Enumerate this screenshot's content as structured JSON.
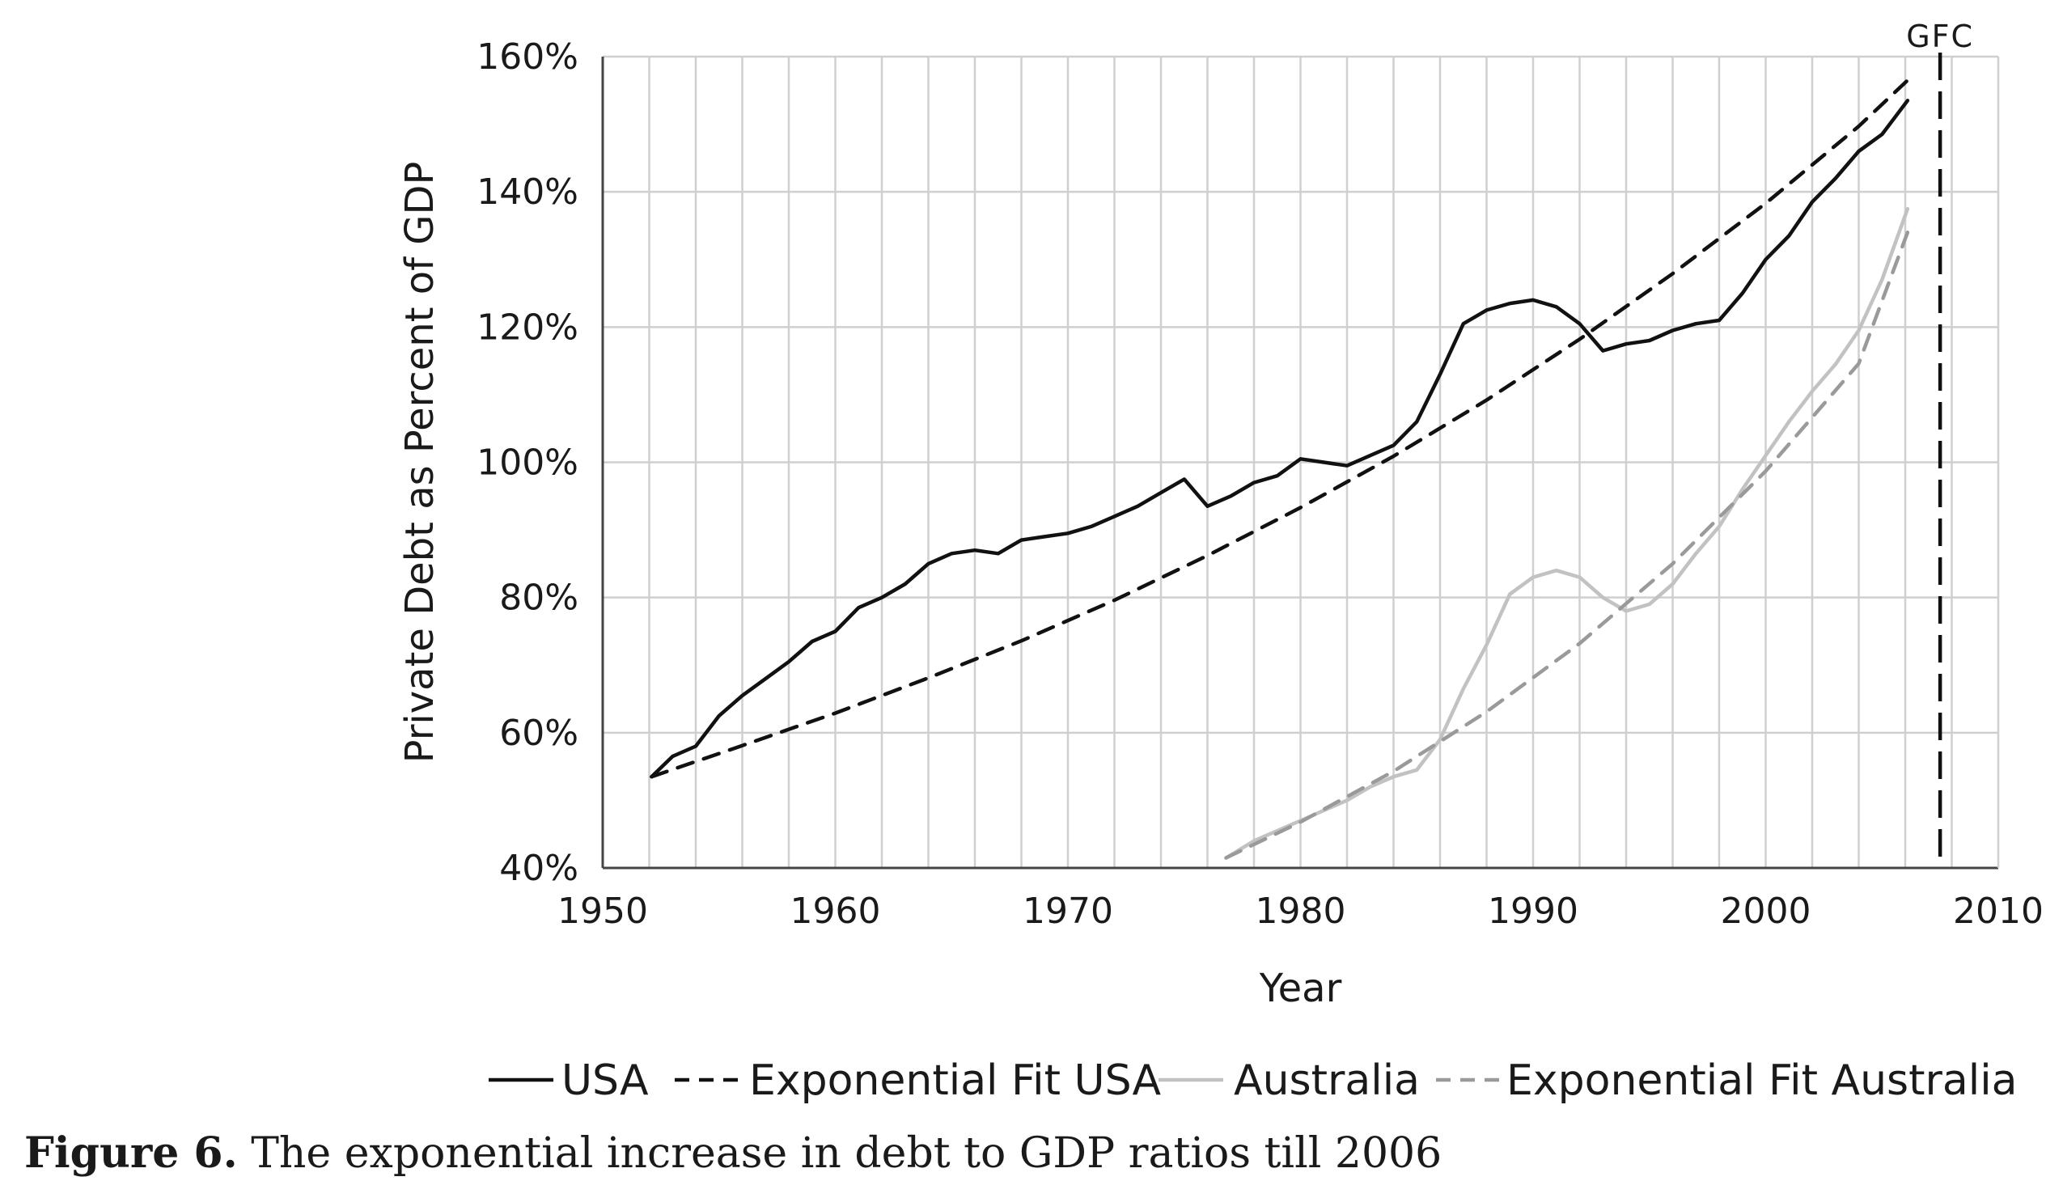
{
  "chart_data": {
    "type": "line",
    "title": "",
    "xlabel": "Year",
    "ylabel": "Private Debt as Percent of GDP",
    "xlim": [
      1950,
      2010
    ],
    "ylim": [
      40,
      160
    ],
    "x_ticks": [
      1950,
      1960,
      1970,
      1980,
      1990,
      2000,
      2010
    ],
    "y_ticks": [
      "40%",
      "60%",
      "80%",
      "100%",
      "120%",
      "140%",
      "160%"
    ],
    "y_tick_values": [
      40,
      60,
      80,
      100,
      120,
      140,
      160
    ],
    "grid": true,
    "legend_position": "bottom",
    "annotation": {
      "label": "GFC",
      "x": 2007.5,
      "style": "dashed-vertical"
    },
    "series": [
      {
        "name": "USA",
        "color": "#111111",
        "dash": "solid",
        "x": [
          1952.1,
          1953,
          1954,
          1955,
          1956,
          1957,
          1958,
          1959,
          1960,
          1961,
          1962,
          1963,
          1964,
          1965,
          1966,
          1967,
          1968,
          1969,
          1970,
          1971,
          1972,
          1973,
          1974,
          1975,
          1976,
          1977,
          1978,
          1979,
          1980,
          1981,
          1982,
          1983,
          1984,
          1985,
          1986,
          1987,
          1988,
          1989,
          1990,
          1991,
          1992,
          1993,
          1994,
          1995,
          1996,
          1997,
          1998,
          1999,
          2000,
          2001,
          2002,
          2003,
          2004,
          2005,
          2006.1
        ],
        "values": [
          53.5,
          56.5,
          58,
          62.5,
          65.5,
          68,
          70.5,
          73.5,
          75,
          78.5,
          80,
          82,
          85,
          86.5,
          87,
          86.5,
          88.5,
          89,
          89.5,
          90.5,
          92,
          93.5,
          95.5,
          97.5,
          93.5,
          95,
          97,
          98,
          100.5,
          100,
          99.5,
          101,
          102.5,
          106,
          113,
          120.5,
          122.5,
          123.5,
          124,
          123,
          120.5,
          116.5,
          117.5,
          118,
          119.5,
          120.5,
          121,
          125,
          130,
          133.5,
          138.5,
          142,
          146,
          148.5,
          153.5
        ]
      },
      {
        "name": "Exponential Fit USA",
        "color": "#111111",
        "dash": "dashed",
        "x": [
          1952.1,
          1956,
          1960,
          1964,
          1968,
          1972,
          1976,
          1980,
          1984,
          1988,
          1992,
          1996,
          2000,
          2004,
          2006.1
        ],
        "values": [
          53.5,
          58.1,
          62.9,
          68.1,
          73.6,
          79.6,
          86.2,
          93.3,
          100.9,
          109.2,
          118.2,
          127.9,
          138.3,
          149.7,
          156.5
        ]
      },
      {
        "name": "Australia",
        "color": "#c2c2c2",
        "dash": "solid",
        "x": [
          1976.8,
          1978,
          1980,
          1982,
          1983,
          1984,
          1985,
          1986,
          1987,
          1988,
          1989,
          1990,
          1991,
          1992,
          1993,
          1994,
          1995,
          1996,
          1997,
          1998,
          1999,
          2000,
          2001,
          2002,
          2003,
          2004,
          2005,
          2006.1
        ],
        "values": [
          41.5,
          44,
          47,
          50,
          52,
          53.5,
          54.5,
          59,
          66.5,
          73,
          80.5,
          83,
          84,
          83,
          80,
          78,
          79,
          82,
          86.5,
          90.5,
          96,
          101,
          106,
          110.5,
          114.5,
          119.5,
          127,
          137.5
        ]
      },
      {
        "name": "Exponential Fit Australia",
        "color": "#9a9a9a",
        "dash": "dashed",
        "x": [
          1976.8,
          1980,
          1984,
          1988,
          1992,
          1996,
          2000,
          2004,
          2006.1
        ],
        "values": [
          41.5,
          46.8,
          54.3,
          63.1,
          73.2,
          85.0,
          98.7,
          114.6,
          134
        ]
      }
    ]
  },
  "caption": {
    "label": "Figure 6.",
    "text": " The exponential increase in debt to GDP ratios till 2006"
  }
}
